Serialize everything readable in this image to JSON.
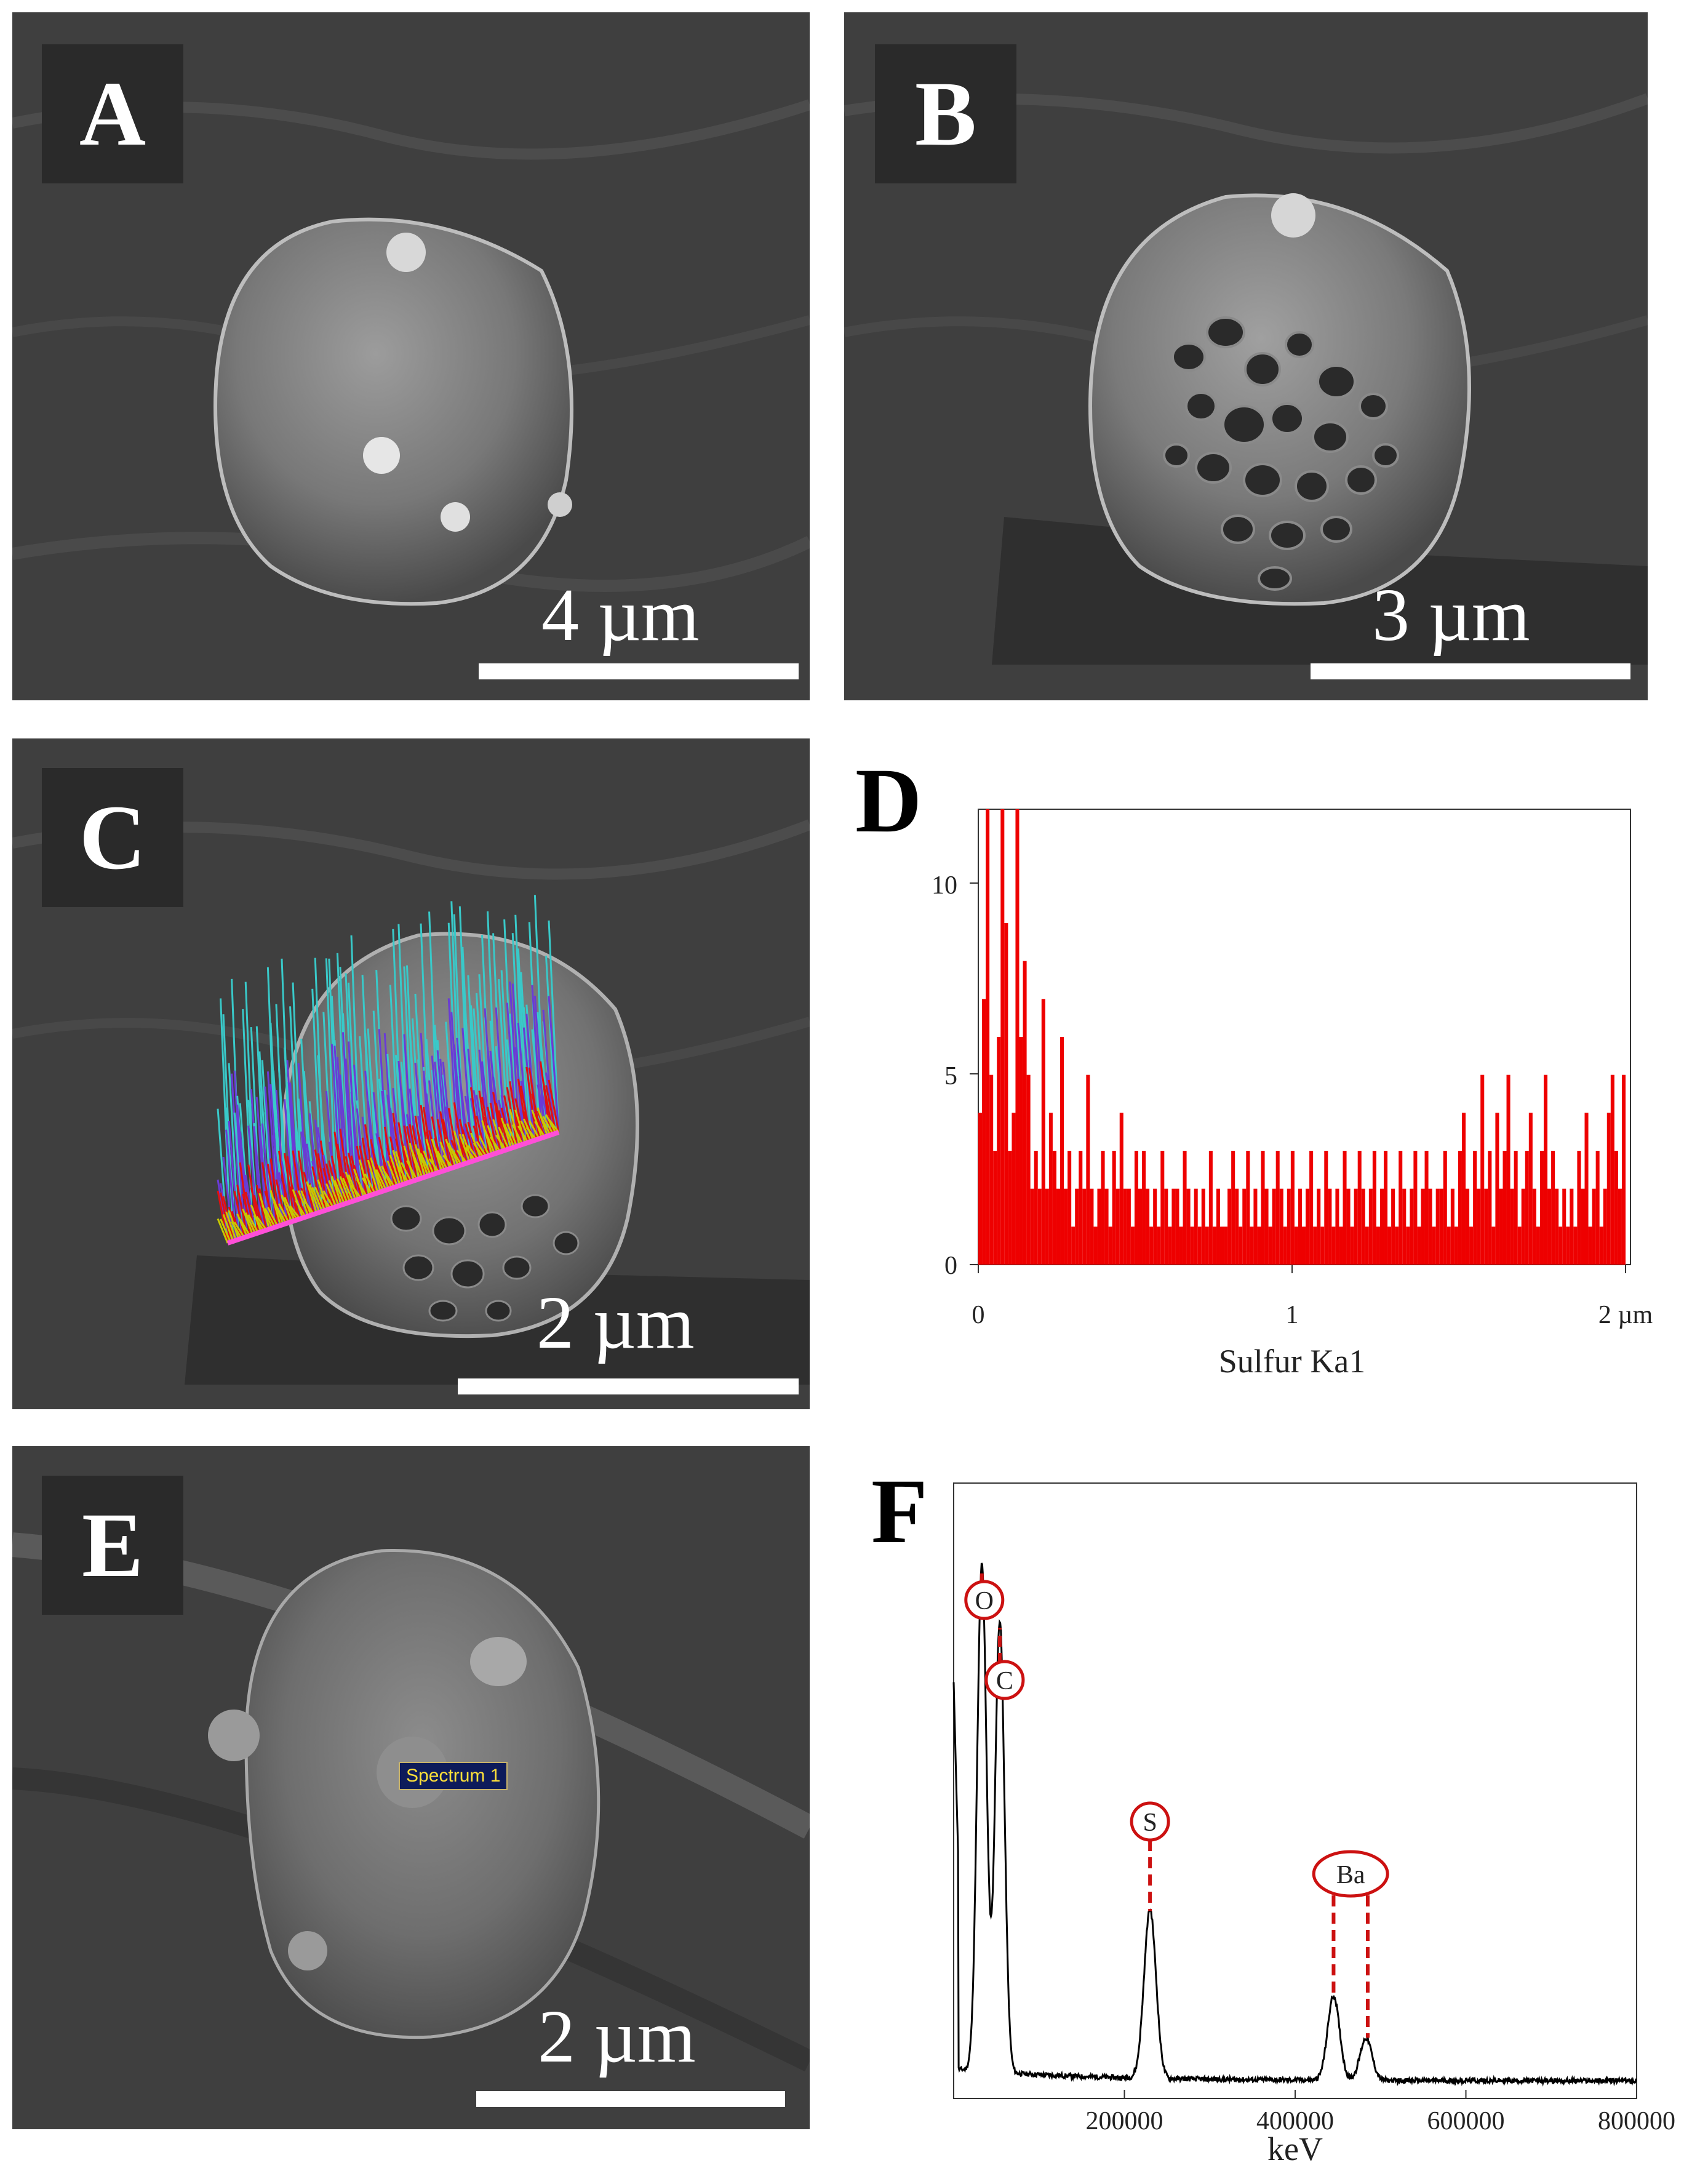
{
  "panels": {
    "a": {
      "letter": "A",
      "scale": "4 µm"
    },
    "b": {
      "letter": "B",
      "scale": "3 µm"
    },
    "c": {
      "letter": "C",
      "scale": "2 µm"
    },
    "e": {
      "letter": "E",
      "scale": "2 µm",
      "spectrum_label": "Spectrum 1"
    }
  },
  "colors": {
    "sem_background": "#3f3f3f",
    "linescan_cyan": "#39c9c9",
    "linescan_blue": "#6a3bd6",
    "linescan_red": "#e01010",
    "linescan_yellow": "#c8c800",
    "linescan_baseline": "#ff4fd8",
    "edx_marker": "#cc1111"
  },
  "chart_data": [
    {
      "panel": "D",
      "type": "bar",
      "title": "",
      "xlabel": "Sulfur Ka1",
      "ylabel": "",
      "x_ticks": [
        "0",
        "1",
        "2 µm"
      ],
      "y_ticks": [
        "0",
        "5",
        "10"
      ],
      "xlim": [
        0,
        2.08
      ],
      "ylim": [
        0,
        12
      ],
      "x_range_um": [
        0,
        2.05
      ],
      "values": [
        4,
        7,
        12,
        5,
        3,
        6,
        12,
        9,
        3,
        4,
        12,
        6,
        8,
        5,
        2,
        3,
        2,
        7,
        2,
        4,
        3,
        2,
        6,
        2,
        3,
        1,
        2,
        3,
        2,
        5,
        2,
        1,
        2,
        3,
        2,
        1,
        3,
        2,
        4,
        2,
        2,
        1,
        3,
        2,
        3,
        2,
        1,
        2,
        1,
        3,
        2,
        1,
        2,
        2,
        1,
        3,
        2,
        1,
        2,
        1,
        2,
        1,
        3,
        1,
        2,
        1,
        1,
        2,
        3,
        2,
        1,
        2,
        3,
        1,
        2,
        1,
        3,
        2,
        1,
        2,
        3,
        2,
        1,
        2,
        3,
        1,
        2,
        1,
        2,
        3,
        1,
        2,
        1,
        3,
        2,
        1,
        2,
        1,
        3,
        2,
        1,
        2,
        3,
        2,
        1,
        2,
        3,
        1,
        2,
        3,
        1,
        2,
        1,
        3,
        2,
        1,
        2,
        3,
        1,
        2,
        3,
        2,
        1,
        2,
        2,
        3,
        1,
        2,
        1,
        3,
        4,
        2,
        1,
        3,
        2,
        5,
        2,
        3,
        1,
        4,
        2,
        3,
        5,
        2,
        3,
        1,
        2,
        3,
        4,
        2,
        1,
        3,
        5,
        2,
        3,
        2,
        1,
        2,
        1,
        2,
        1,
        3,
        2,
        4,
        1,
        2,
        3,
        1,
        2,
        4,
        5,
        3,
        2,
        5
      ]
    },
    {
      "panel": "F",
      "type": "line",
      "title": "",
      "xlabel": "keV",
      "ylabel": "",
      "x_ticks": [
        "200000",
        "400000",
        "600000",
        "800000"
      ],
      "xlim": [
        0,
        800000
      ],
      "ylim": [
        0,
        1
      ],
      "peaks": [
        {
          "element": "O",
          "x": 33000,
          "height": 0.84
        },
        {
          "element": "C",
          "x": 54000,
          "height": 0.75
        },
        {
          "element": "S",
          "x": 230000,
          "height": 0.28
        },
        {
          "element": "Ba",
          "x": 445000,
          "height": 0.14
        },
        {
          "element": "Ba",
          "x": 483000,
          "height": 0.07
        }
      ],
      "markers": [
        {
          "label": "O",
          "x": 33000
        },
        {
          "label": "C",
          "x": 54000
        },
        {
          "label": "S",
          "x": 230000
        },
        {
          "label": "Ba",
          "x": 445000
        },
        {
          "label": "Ba",
          "x": 485000
        }
      ]
    }
  ]
}
